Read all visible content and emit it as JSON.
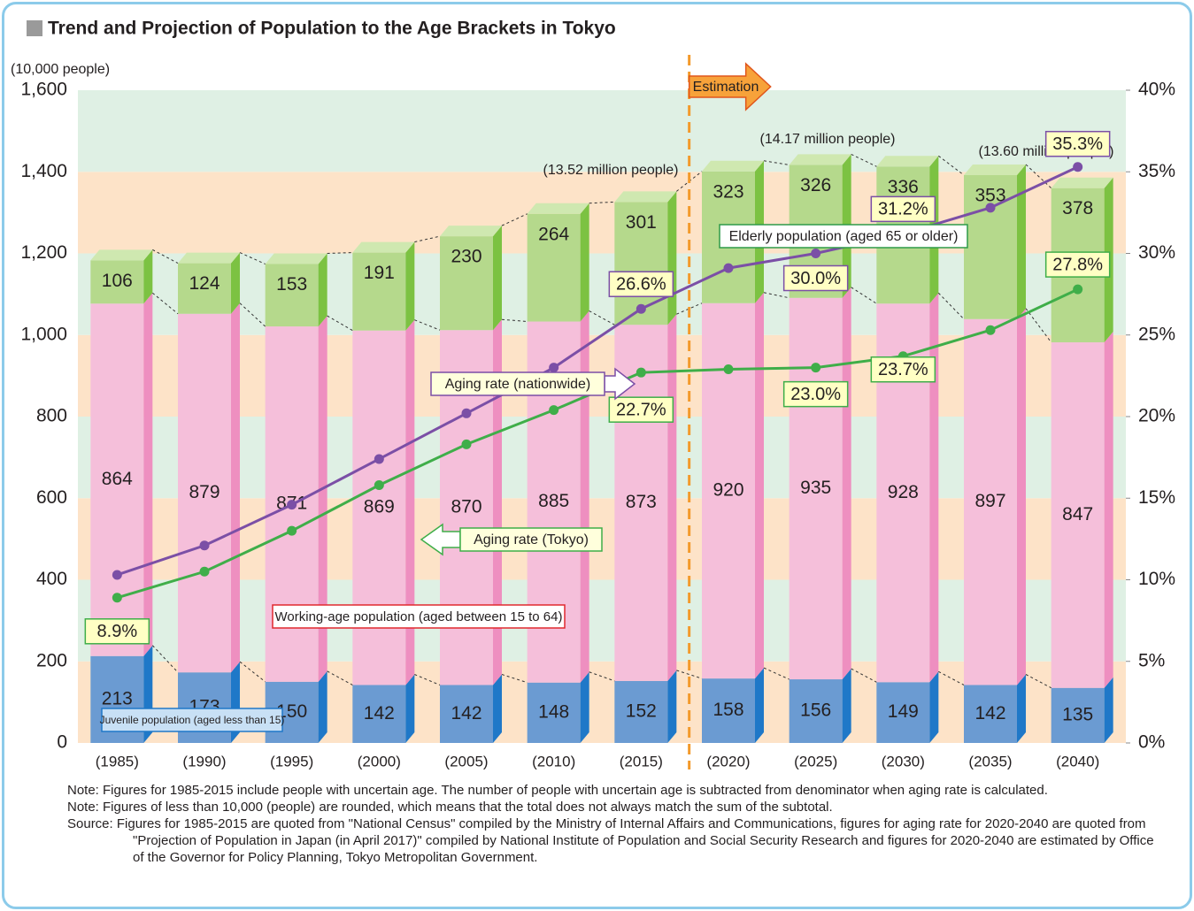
{
  "chart_data": {
    "type": "bar",
    "stacked": true,
    "title": "Trend and Projection of Population to the Age Brackets in Tokyo",
    "ylabel": "(10,000 people)",
    "categories": [
      "(1985)",
      "(1990)",
      "(1995)",
      "(2000)",
      "(2005)",
      "(2010)",
      "(2015)",
      "(2020)",
      "(2025)",
      "(2030)",
      "(2035)",
      "(2040)"
    ],
    "series": [
      {
        "name": "Juvenile population (aged less than 15)",
        "color": "#6b9bd2",
        "values": [
          213,
          173,
          150,
          142,
          142,
          148,
          152,
          158,
          156,
          149,
          142,
          135
        ]
      },
      {
        "name": "Working-age population (aged between 15 to 64)",
        "color": "#f5bfda",
        "values": [
          864,
          879,
          871,
          869,
          870,
          885,
          873,
          920,
          935,
          928,
          897,
          847
        ]
      },
      {
        "name": "Elderly population (aged 65 or older)",
        "color": "#b5d98c",
        "values": [
          106,
          124,
          153,
          191,
          230,
          264,
          301,
          323,
          326,
          336,
          353,
          378
        ]
      },
      {
        "name": "Aging rate (nationwide)",
        "type": "line",
        "axis": "y2",
        "color": "#7b4fa6",
        "values": [
          10.3,
          12.1,
          14.6,
          17.4,
          20.2,
          23.0,
          26.6,
          29.1,
          30.0,
          31.2,
          32.8,
          35.3
        ],
        "value_labels": [
          null,
          null,
          null,
          null,
          null,
          null,
          "26.6%",
          null,
          "30.0%",
          "31.2%",
          null,
          "35.3%"
        ]
      },
      {
        "name": "Aging rate (Tokyo)",
        "type": "line",
        "axis": "y2",
        "color": "#3fae49",
        "values": [
          8.9,
          10.5,
          13.0,
          15.8,
          18.3,
          20.4,
          22.7,
          22.9,
          23.0,
          23.7,
          25.3,
          27.8
        ],
        "value_labels": [
          "8.9%",
          null,
          null,
          null,
          null,
          null,
          "22.7%",
          null,
          "23.0%",
          "23.7%",
          null,
          "27.8%"
        ]
      }
    ],
    "ylim": [
      0,
      1600
    ],
    "yticks": [
      0,
      200,
      400,
      600,
      800,
      {
        "value": 1000,
        "label": "1,000"
      },
      {
        "value": 1200,
        "label": "1,200"
      },
      {
        "value": 1400,
        "label": "1,400"
      },
      {
        "value": 1600,
        "label": "1,600"
      }
    ],
    "y2lim": [
      0,
      40
    ],
    "y2ticks": [
      {
        "value": 0,
        "label": "0%"
      },
      {
        "value": 5,
        "label": "5%"
      },
      {
        "value": 10,
        "label": "10%"
      },
      {
        "value": 15,
        "label": "15%"
      },
      {
        "value": 20,
        "label": "20%"
      },
      {
        "value": 25,
        "label": "25%"
      },
      {
        "value": 30,
        "label": "30%"
      },
      {
        "value": 35,
        "label": "35%"
      },
      {
        "value": 40,
        "label": "40%"
      }
    ],
    "estimation_label": "Estimation",
    "annotations": [
      "(13.52 million people)",
      "(14.17 million people)",
      "(13.60 million people)"
    ],
    "notes": [
      "Note: Figures for 1985-2015 include people with uncertain age. The number of people with uncertain age is subtracted from denominator when aging rate is calculated.",
      "Note: Figures of less than 10,000 (people) are rounded, which means that the total does not always match the sum of the subtotal.",
      "Source: Figures for 1985-2015 are quoted from \"National Census\" compiled by the Ministry of Internal Affairs and Communications, figures for aging rate for 2020-2040 are quoted from \"Projection of Population in Japan (in April 2017)\" compiled by National Institute of Population and Social Security Research and figures for 2020-2040 are estimated by Office of the Governor for Policy Planning, Tokyo Metropolitan Government."
    ]
  }
}
